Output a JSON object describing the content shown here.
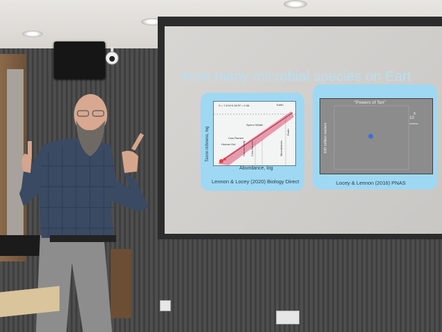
{
  "slide": {
    "title": "How many microbial species on Eart",
    "left_panel": {
      "ylabel": "Taxon richness, log",
      "xlabel": "Abundance, log",
      "caption": "Lennon & Locey (2020) Biology Direct",
      "equation": "S = 7.6·N^0.38  R² = 0.38",
      "annotations": [
        "Earth",
        "Sperm Whale",
        "Cow Rumen",
        "Human Gut",
        "Human body",
        "Cow Rumen",
        "Microbiomes",
        "Earth"
      ]
    },
    "right_panel": {
      "title": "\"Powers of Ten\"",
      "ylabel": "100 million meters",
      "exponent_label": "10",
      "exponent": "8",
      "unit": "meters",
      "caption": "Locey & Lennon (2016) PNAS"
    }
  },
  "colors": {
    "slide_title": "#b9dff2",
    "panel_bg": "#9fd8f2",
    "trend_band": "#e58aa0",
    "earth_dot": "#3b6fd8"
  }
}
